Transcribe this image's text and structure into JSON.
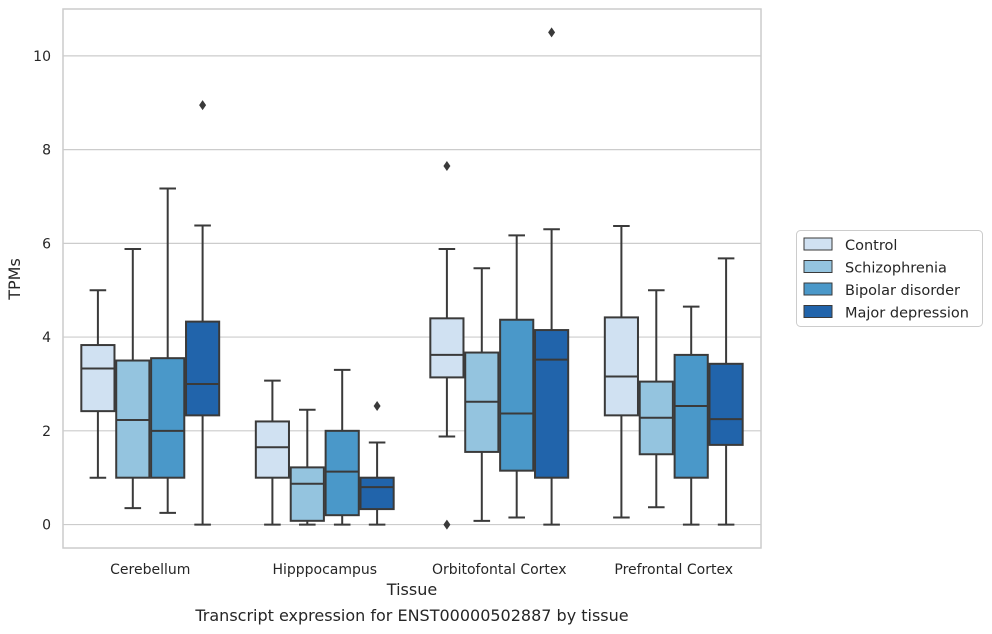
{
  "chart_data": {
    "type": "boxplot",
    "title": "",
    "caption": "Transcript expression for ENST00000502887 by tissue",
    "xlabel": "Tissue",
    "ylabel": "TPMs",
    "ylim": [
      -0.5,
      11.0
    ],
    "yticks": [
      0,
      2,
      4,
      6,
      8,
      10
    ],
    "grid": "horizontal",
    "legend_position": "right",
    "categories": [
      "Cerebellum",
      "Hipppocampus",
      "Orbitofontal Cortex",
      "Prefrontal Cortex"
    ],
    "series": [
      {
        "name": "Control",
        "color": "#d0e1f2",
        "boxes": [
          {
            "whislo": 1.0,
            "q1": 2.42,
            "med": 3.33,
            "q3": 3.83,
            "whishi": 5.0,
            "fliers": []
          },
          {
            "whislo": 0.0,
            "q1": 1.0,
            "med": 1.65,
            "q3": 2.2,
            "whishi": 3.07,
            "fliers": []
          },
          {
            "whislo": 1.88,
            "q1": 3.14,
            "med": 3.62,
            "q3": 4.4,
            "whishi": 5.88,
            "fliers": [
              7.65,
              0.0
            ]
          },
          {
            "whislo": 0.15,
            "q1": 2.33,
            "med": 3.16,
            "q3": 4.42,
            "whishi": 6.37,
            "fliers": []
          }
        ]
      },
      {
        "name": "Schizophrenia",
        "color": "#94c4df",
        "boxes": [
          {
            "whislo": 0.35,
            "q1": 1.0,
            "med": 2.23,
            "q3": 3.5,
            "whishi": 5.88,
            "fliers": []
          },
          {
            "whislo": 0.0,
            "q1": 0.08,
            "med": 0.87,
            "q3": 1.22,
            "whishi": 2.45,
            "fliers": []
          },
          {
            "whislo": 0.08,
            "q1": 1.55,
            "med": 2.62,
            "q3": 3.67,
            "whishi": 5.47,
            "fliers": []
          },
          {
            "whislo": 0.37,
            "q1": 1.5,
            "med": 2.28,
            "q3": 3.05,
            "whishi": 5.0,
            "fliers": []
          }
        ]
      },
      {
        "name": "Bipolar disorder",
        "color": "#4a98c9",
        "boxes": [
          {
            "whislo": 0.25,
            "q1": 1.0,
            "med": 2.0,
            "q3": 3.55,
            "whishi": 7.17,
            "fliers": []
          },
          {
            "whislo": 0.0,
            "q1": 0.2,
            "med": 1.13,
            "q3": 2.0,
            "whishi": 3.3,
            "fliers": []
          },
          {
            "whislo": 0.15,
            "q1": 1.15,
            "med": 2.37,
            "q3": 4.37,
            "whishi": 6.17,
            "fliers": []
          },
          {
            "whislo": 0.0,
            "q1": 1.0,
            "med": 2.53,
            "q3": 3.62,
            "whishi": 4.65,
            "fliers": []
          }
        ]
      },
      {
        "name": "Major depression",
        "color": "#2164ab",
        "boxes": [
          {
            "whislo": 0.0,
            "q1": 2.33,
            "med": 3.0,
            "q3": 4.33,
            "whishi": 6.38,
            "fliers": [
              8.95
            ]
          },
          {
            "whislo": 0.0,
            "q1": 0.33,
            "med": 0.8,
            "q3": 1.0,
            "whishi": 1.75,
            "fliers": [
              2.53
            ]
          },
          {
            "whislo": 0.0,
            "q1": 1.0,
            "med": 3.52,
            "q3": 4.15,
            "whishi": 6.3,
            "fliers": [
              10.5
            ]
          },
          {
            "whislo": 0.0,
            "q1": 1.7,
            "med": 2.25,
            "q3": 3.43,
            "whishi": 5.68,
            "fliers": []
          }
        ]
      }
    ]
  }
}
